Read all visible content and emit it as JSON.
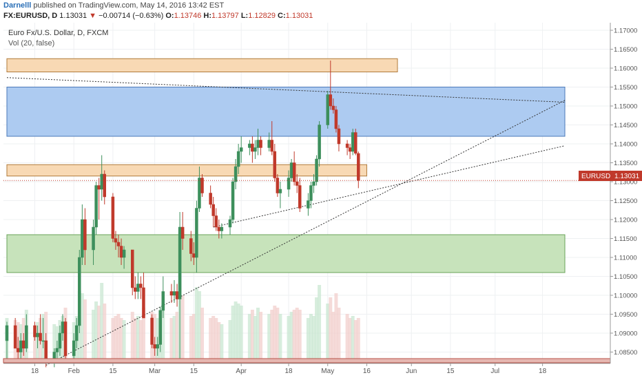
{
  "header": {
    "author": "Darnelll",
    "published_text": "published on TradingView.com, May 14, 2016 13:42 EST",
    "symbol": "FX:EURUSD, D",
    "last": "1.13031",
    "change": "−0.00714 (−0.63%)",
    "o_label": "O:",
    "o": "1.13746",
    "h_label": "H:",
    "h": "1.13797",
    "l_label": "L:",
    "l": "1.12829",
    "c_label": "C:",
    "c": "1.13031"
  },
  "legend": {
    "title": "Euro Fx/U.S. Dollar, D, FXCM",
    "volume": "Vol (20, false)"
  },
  "price_tag": {
    "symbol": "EURUSD",
    "value": "1.13031"
  },
  "colors": {
    "up": "#3d8f5c",
    "down": "#c0392b",
    "blue_zone": "#a9c8f0",
    "orange_zone": "#f8d7b0",
    "green_zone": "#c4e2b7",
    "grid": "#eef0f2",
    "axis_text": "#555555"
  },
  "chart_data": {
    "type": "candlestick",
    "title": "Euro Fx/U.S. Dollar, D, FXCM",
    "ylim": [
      1.082,
      1.172
    ],
    "y_ticks": [
      "1.17000",
      "1.16500",
      "1.16000",
      "1.15500",
      "1.15000",
      "1.14500",
      "1.14000",
      "1.13500",
      "1.13000",
      "1.12500",
      "1.12000",
      "1.11500",
      "1.11000",
      "1.10500",
      "1.10000",
      "1.09500",
      "1.09000",
      "1.08500"
    ],
    "x_ticks": [
      {
        "label": "18",
        "date": "2016-01-18"
      },
      {
        "label": "Feb",
        "date": "2016-02-01"
      },
      {
        "label": "15",
        "date": "2016-02-15"
      },
      {
        "label": "Mar",
        "date": "2016-03-01"
      },
      {
        "label": "15",
        "date": "2016-03-15"
      },
      {
        "label": "Apr",
        "date": "2016-04-01"
      },
      {
        "label": "18",
        "date": "2016-04-18"
      },
      {
        "label": "May",
        "date": "2016-05-02"
      },
      {
        "label": "16",
        "date": "2016-05-16"
      },
      {
        "label": "Jun",
        "date": "2016-06-01"
      },
      {
        "label": "15",
        "date": "2016-06-15"
      },
      {
        "label": "Jul",
        "date": "2016-07-01"
      },
      {
        "label": "18",
        "date": "2016-07-18"
      }
    ],
    "last_price": 1.13031,
    "zones": [
      {
        "kind": "orange",
        "from": 1.159,
        "to": 1.1625,
        "start": "2016-01-08",
        "end": "2016-05-27"
      },
      {
        "kind": "blue",
        "from": 1.142,
        "to": 1.155,
        "start": "2016-01-08",
        "end": "2016-07-26"
      },
      {
        "kind": "orange",
        "from": 1.1315,
        "to": 1.1345,
        "start": "2016-01-08",
        "end": "2016-05-16"
      },
      {
        "kind": "green",
        "from": 1.106,
        "to": 1.116,
        "start": "2016-01-08",
        "end": "2016-07-26"
      }
    ],
    "trendlines": [
      {
        "start": [
          "2016-01-08",
          1.1575
        ],
        "end": [
          "2016-07-26",
          1.151
        ]
      },
      {
        "start": [
          "2016-01-22",
          1.0815
        ],
        "end": [
          "2016-07-26",
          1.1515
        ]
      },
      {
        "start": [
          "2016-03-22",
          1.118
        ],
        "end": [
          "2016-07-26",
          1.1395
        ]
      }
    ],
    "ohlcv": [
      [
        "2016-01-08",
        1.088,
        1.093,
        1.083,
        1.092,
        40
      ],
      [
        "2016-01-11",
        1.092,
        1.094,
        1.086,
        1.086,
        38
      ],
      [
        "2016-01-12",
        1.086,
        1.089,
        1.083,
        1.085,
        36
      ],
      [
        "2016-01-13",
        1.085,
        1.09,
        1.083,
        1.088,
        34
      ],
      [
        "2016-01-14",
        1.088,
        1.09,
        1.084,
        1.086,
        40
      ],
      [
        "2016-01-15",
        1.086,
        1.095,
        1.085,
        1.092,
        48
      ],
      [
        "2016-01-18",
        1.092,
        1.093,
        1.088,
        1.089,
        28
      ],
      [
        "2016-01-19",
        1.089,
        1.092,
        1.086,
        1.09,
        36
      ],
      [
        "2016-01-20",
        1.09,
        1.095,
        1.087,
        1.088,
        40
      ],
      [
        "2016-01-21",
        1.088,
        1.094,
        1.086,
        1.088,
        44
      ],
      [
        "2016-01-22",
        1.088,
        1.09,
        1.081,
        1.082,
        46
      ],
      [
        "2016-01-25",
        1.082,
        1.086,
        1.081,
        1.085,
        34
      ],
      [
        "2016-01-26",
        1.085,
        1.088,
        1.083,
        1.086,
        32
      ],
      [
        "2016-01-27",
        1.086,
        1.092,
        1.084,
        1.09,
        38
      ],
      [
        "2016-01-28",
        1.09,
        1.095,
        1.088,
        1.093,
        42
      ],
      [
        "2016-01-29",
        1.093,
        1.094,
        1.083,
        1.084,
        50
      ],
      [
        "2016-02-01",
        1.084,
        1.09,
        1.083,
        1.088,
        36
      ],
      [
        "2016-02-02",
        1.088,
        1.094,
        1.086,
        1.092,
        42
      ],
      [
        "2016-02-03",
        1.092,
        1.112,
        1.09,
        1.11,
        66
      ],
      [
        "2016-02-04",
        1.11,
        1.124,
        1.108,
        1.12,
        64
      ],
      [
        "2016-02-05",
        1.12,
        1.123,
        1.108,
        1.112,
        58
      ],
      [
        "2016-02-08",
        1.112,
        1.12,
        1.108,
        1.118,
        48
      ],
      [
        "2016-02-09",
        1.118,
        1.13,
        1.116,
        1.129,
        56
      ],
      [
        "2016-02-10",
        1.129,
        1.131,
        1.12,
        1.128,
        52
      ],
      [
        "2016-02-11",
        1.128,
        1.137,
        1.125,
        1.132,
        74
      ],
      [
        "2016-02-12",
        1.132,
        1.133,
        1.124,
        1.126,
        54
      ],
      [
        "2016-02-15",
        1.126,
        1.127,
        1.114,
        1.115,
        40
      ],
      [
        "2016-02-16",
        1.115,
        1.117,
        1.112,
        1.114,
        42
      ],
      [
        "2016-02-17",
        1.114,
        1.116,
        1.11,
        1.113,
        44
      ],
      [
        "2016-02-18",
        1.113,
        1.115,
        1.108,
        1.11,
        40
      ],
      [
        "2016-02-19",
        1.11,
        1.113,
        1.107,
        1.112,
        38
      ],
      [
        "2016-02-22",
        1.112,
        1.112,
        1.1,
        1.102,
        46
      ],
      [
        "2016-02-23",
        1.102,
        1.105,
        1.099,
        1.101,
        40
      ],
      [
        "2016-02-24",
        1.101,
        1.106,
        1.099,
        1.103,
        42
      ],
      [
        "2016-02-25",
        1.103,
        1.105,
        1.099,
        1.102,
        38
      ],
      [
        "2016-02-26",
        1.102,
        1.106,
        1.094,
        1.094,
        50
      ],
      [
        "2016-02-29",
        1.094,
        1.095,
        1.086,
        1.087,
        46
      ],
      [
        "2016-03-01",
        1.087,
        1.089,
        1.084,
        1.086,
        44
      ],
      [
        "2016-03-02",
        1.086,
        1.089,
        1.084,
        1.087,
        40
      ],
      [
        "2016-03-03",
        1.087,
        1.097,
        1.085,
        1.096,
        48
      ],
      [
        "2016-03-04",
        1.096,
        1.105,
        1.094,
        1.101,
        54
      ],
      [
        "2016-03-07",
        1.101,
        1.103,
        1.098,
        1.1,
        40
      ],
      [
        "2016-03-08",
        1.1,
        1.104,
        1.098,
        1.101,
        42
      ],
      [
        "2016-03-09",
        1.101,
        1.103,
        1.097,
        1.099,
        46
      ],
      [
        "2016-03-10",
        1.099,
        1.122,
        1.083,
        1.118,
        84
      ],
      [
        "2016-03-11",
        1.118,
        1.122,
        1.112,
        1.115,
        62
      ],
      [
        "2016-03-14",
        1.115,
        1.117,
        1.109,
        1.111,
        42
      ],
      [
        "2016-03-15",
        1.111,
        1.114,
        1.108,
        1.11,
        44
      ],
      [
        "2016-03-16",
        1.11,
        1.125,
        1.106,
        1.123,
        70
      ],
      [
        "2016-03-17",
        1.123,
        1.134,
        1.122,
        1.131,
        66
      ],
      [
        "2016-03-18",
        1.131,
        1.132,
        1.126,
        1.127,
        50
      ],
      [
        "2016-03-21",
        1.127,
        1.129,
        1.123,
        1.124,
        40
      ],
      [
        "2016-03-22",
        1.124,
        1.126,
        1.118,
        1.121,
        42
      ],
      [
        "2016-03-23",
        1.121,
        1.123,
        1.117,
        1.118,
        40
      ],
      [
        "2016-03-24",
        1.118,
        1.12,
        1.115,
        1.117,
        36
      ],
      [
        "2016-03-25",
        1.117,
        1.119,
        1.115,
        1.118,
        34
      ],
      [
        "2016-03-28",
        1.118,
        1.121,
        1.116,
        1.12,
        38
      ],
      [
        "2016-03-29",
        1.12,
        1.131,
        1.119,
        1.13,
        52
      ],
      [
        "2016-03-30",
        1.13,
        1.136,
        1.128,
        1.134,
        56
      ],
      [
        "2016-03-31",
        1.134,
        1.14,
        1.132,
        1.138,
        54
      ],
      [
        "2016-04-01",
        1.138,
        1.142,
        1.135,
        1.139,
        52
      ],
      [
        "2016-04-04",
        1.139,
        1.141,
        1.137,
        1.14,
        44
      ],
      [
        "2016-04-05",
        1.14,
        1.142,
        1.135,
        1.138,
        48
      ],
      [
        "2016-04-06",
        1.138,
        1.141,
        1.136,
        1.139,
        42
      ],
      [
        "2016-04-07",
        1.139,
        1.144,
        1.137,
        1.141,
        50
      ],
      [
        "2016-04-08",
        1.141,
        1.142,
        1.137,
        1.139,
        46
      ],
      [
        "2016-04-11",
        1.139,
        1.143,
        1.138,
        1.141,
        44
      ],
      [
        "2016-04-12",
        1.141,
        1.146,
        1.137,
        1.138,
        48
      ],
      [
        "2016-04-13",
        1.138,
        1.14,
        1.13,
        1.131,
        52
      ],
      [
        "2016-04-14",
        1.131,
        1.132,
        1.126,
        1.127,
        50
      ],
      [
        "2016-04-15",
        1.127,
        1.13,
        1.123,
        1.128,
        44
      ],
      [
        "2016-04-18",
        1.128,
        1.133,
        1.126,
        1.131,
        42
      ],
      [
        "2016-04-19",
        1.131,
        1.136,
        1.13,
        1.135,
        46
      ],
      [
        "2016-04-20",
        1.135,
        1.138,
        1.129,
        1.13,
        48
      ],
      [
        "2016-04-21",
        1.13,
        1.132,
        1.127,
        1.129,
        50
      ],
      [
        "2016-04-22",
        1.129,
        1.131,
        1.122,
        1.123,
        48
      ],
      [
        "2016-04-25",
        1.123,
        1.127,
        1.121,
        1.125,
        40
      ],
      [
        "2016-04-26",
        1.125,
        1.13,
        1.123,
        1.129,
        44
      ],
      [
        "2016-04-27",
        1.129,
        1.132,
        1.127,
        1.13,
        42
      ],
      [
        "2016-04-28",
        1.13,
        1.137,
        1.129,
        1.136,
        60
      ],
      [
        "2016-04-29",
        1.136,
        1.146,
        1.134,
        1.145,
        72
      ],
      [
        "2016-05-02",
        1.145,
        1.154,
        1.144,
        1.153,
        54
      ],
      [
        "2016-05-03",
        1.153,
        1.162,
        1.149,
        1.15,
        60
      ],
      [
        "2016-05-04",
        1.15,
        1.152,
        1.148,
        1.149,
        46
      ],
      [
        "2016-05-05",
        1.149,
        1.15,
        1.143,
        1.144,
        64
      ],
      [
        "2016-05-06",
        1.144,
        1.145,
        1.138,
        1.14,
        50
      ],
      [
        "2016-05-09",
        1.14,
        1.141,
        1.137,
        1.139,
        44
      ],
      [
        "2016-05-10",
        1.139,
        1.14,
        1.136,
        1.138,
        40
      ],
      [
        "2016-05-11",
        1.138,
        1.144,
        1.137,
        1.143,
        42
      ],
      [
        "2016-05-12",
        1.143,
        1.144,
        1.137,
        1.1375,
        38
      ],
      [
        "2016-05-13",
        1.13746,
        1.13797,
        1.12829,
        1.13031,
        40
      ]
    ]
  }
}
